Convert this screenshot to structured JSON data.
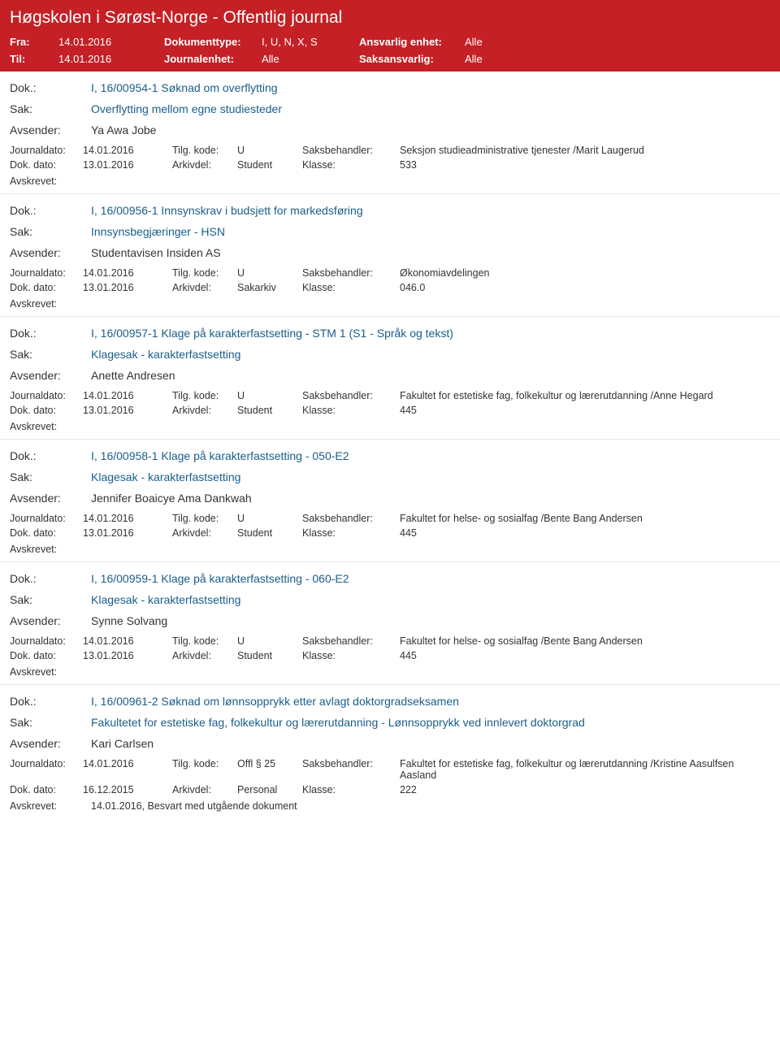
{
  "header": {
    "title": "Høgskolen i Sørøst-Norge - Offentlig journal",
    "fra_label": "Fra:",
    "fra_value": "14.01.2016",
    "til_label": "Til:",
    "til_value": "14.01.2016",
    "dokumenttype_label": "Dokumenttype:",
    "dokumenttype_value": "I, U, N, X, S",
    "journalenhet_label": "Journalenhet:",
    "journalenhet_value": "Alle",
    "ansvarlig_label": "Ansvarlig enhet:",
    "ansvarlig_value": "Alle",
    "saksansvarlig_label": "Saksansvarlig:",
    "saksansvarlig_value": "Alle"
  },
  "labels": {
    "dok": "Dok.:",
    "sak": "Sak:",
    "avsender": "Avsender:",
    "journaldato": "Journaldato:",
    "tilgkode": "Tilg. kode:",
    "saksbehandler": "Saksbehandler:",
    "dokdato": "Dok. dato:",
    "arkivdel": "Arkivdel:",
    "klasse": "Klasse:",
    "avskrevet": "Avskrevet:"
  },
  "entries": [
    {
      "dok": "I, 16/00954-1 Søknad om overflytting",
      "sak": "Overflytting mellom egne studiesteder",
      "avsender": "Ya Awa Jobe",
      "journaldato": "14.01.2016",
      "tilgkode": "U",
      "saksbehandler": "Seksjon studieadministrative tjenester /Marit Laugerud",
      "dokdato": "13.01.2016",
      "arkivdel": "Student",
      "klasse": "533",
      "avskrevet": ""
    },
    {
      "dok": "I, 16/00956-1 Innsynskrav i budsjett for markedsføring",
      "sak": "Innsynsbegjæringer - HSN",
      "avsender": "Studentavisen Insiden AS",
      "journaldato": "14.01.2016",
      "tilgkode": "U",
      "saksbehandler": "Økonomiavdelingen",
      "dokdato": "13.01.2016",
      "arkivdel": "Sakarkiv",
      "klasse": "046.0",
      "avskrevet": ""
    },
    {
      "dok": "I, 16/00957-1 Klage på karakterfastsetting - STM 1 (S1 - Språk og tekst)",
      "sak": "Klagesak - karakterfastsetting",
      "avsender": "Anette Andresen",
      "journaldato": "14.01.2016",
      "tilgkode": "U",
      "saksbehandler": "Fakultet for estetiske fag, folkekultur og lærerutdanning /Anne Hegard",
      "dokdato": "13.01.2016",
      "arkivdel": "Student",
      "klasse": "445",
      "avskrevet": ""
    },
    {
      "dok": "I, 16/00958-1 Klage på karakterfastsetting - 050-E2",
      "sak": "Klagesak - karakterfastsetting",
      "avsender": "Jennifer Boaicye Ama Dankwah",
      "journaldato": "14.01.2016",
      "tilgkode": "U",
      "saksbehandler": "Fakultet for helse- og sosialfag /Bente Bang Andersen",
      "dokdato": "13.01.2016",
      "arkivdel": "Student",
      "klasse": "445",
      "avskrevet": ""
    },
    {
      "dok": "I, 16/00959-1 Klage på karakterfastsetting - 060-E2",
      "sak": "Klagesak - karakterfastsetting",
      "avsender": "Synne Solvang",
      "journaldato": "14.01.2016",
      "tilgkode": "U",
      "saksbehandler": "Fakultet for helse- og sosialfag /Bente Bang Andersen",
      "dokdato": "13.01.2016",
      "arkivdel": "Student",
      "klasse": "445",
      "avskrevet": ""
    },
    {
      "dok": "I, 16/00961-2 Søknad om lønnsopprykk etter avlagt doktorgradseksamen",
      "sak": "Fakultetet for estetiske fag, folkekultur og lærerutdanning - Lønnsopprykk ved innlevert doktorgrad",
      "avsender": "Kari Carlsen",
      "journaldato": "14.01.2016",
      "tilgkode": "Offl § 25",
      "saksbehandler": "Fakultet for estetiske fag, folkekultur og lærerutdanning /Kristine Aasulfsen Aasland",
      "dokdato": "16.12.2015",
      "arkivdel": "Personal",
      "klasse": "222",
      "avskrevet": "14.01.2016, Besvart med utgående dokument"
    }
  ]
}
